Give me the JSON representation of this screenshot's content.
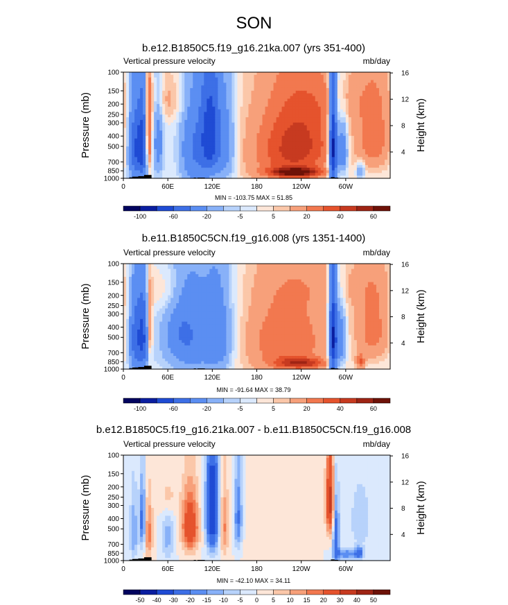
{
  "figure": {
    "title": "SON"
  },
  "chart_data": [
    {
      "type": "contour",
      "title": "b.e12.B1850C5.f19_g16.21ka.007 (yrs 351-400)",
      "left_label": "Vertical pressure velocity",
      "units": "mb/day",
      "xlabel": "",
      "ylabel": "Pressure (mb)",
      "ylabel_right": "Height (km)",
      "x_ticks": [
        "0",
        "60E",
        "120E",
        "180",
        "120W",
        "60W"
      ],
      "x_tick_values": [
        0,
        60,
        120,
        180,
        240,
        300
      ],
      "xlim": [
        0,
        360
      ],
      "y_ticks": [
        "100",
        "150",
        "200",
        "250",
        "300",
        "400",
        "500",
        "700",
        "850",
        "1000"
      ],
      "y_tick_values": [
        100,
        150,
        200,
        250,
        300,
        400,
        500,
        700,
        850,
        1000
      ],
      "ylim": [
        1000,
        100
      ],
      "y_right_ticks": [
        "4",
        "8",
        "12",
        "16"
      ],
      "y_right_tick_values": [
        4,
        8,
        12,
        16
      ],
      "stats": "MIN = -103.75  MAX =  51.85",
      "min": -103.75,
      "max": 51.85,
      "colorbar_labels": [
        "-100",
        "-60",
        "-20",
        "-5",
        "5",
        "20",
        "40",
        "60"
      ],
      "levels": [
        -120,
        -100,
        -80,
        -60,
        -40,
        -20,
        -10,
        -5,
        0,
        5,
        10,
        20,
        30,
        40,
        50,
        60
      ],
      "features": [
        {
          "lon": 15,
          "p": 520,
          "wlon": 6,
          "wp": 330,
          "value": -55
        },
        {
          "lon": 26,
          "p": 500,
          "wlon": 5,
          "wp": 330,
          "value": -65
        },
        {
          "lon": 34,
          "p": 400,
          "wlon": 3,
          "wp": 260,
          "value": 48
        },
        {
          "lon": 47,
          "p": 470,
          "wlon": 5,
          "wp": 300,
          "value": -28
        },
        {
          "lon": 60,
          "p": 180,
          "wlon": 18,
          "wp": 70,
          "value": 12
        },
        {
          "lon": 95,
          "p": 550,
          "wlon": 13,
          "wp": 380,
          "value": -38
        },
        {
          "lon": 118,
          "p": 400,
          "wlon": 10,
          "wp": 330,
          "value": -70
        },
        {
          "lon": 140,
          "p": 500,
          "wlon": 9,
          "wp": 350,
          "value": -25
        },
        {
          "lon": 225,
          "p": 550,
          "wlon": 40,
          "wp": 380,
          "value": 38
        },
        {
          "lon": 250,
          "p": 400,
          "wlon": 28,
          "wp": 250,
          "value": 12
        },
        {
          "lon": 232,
          "p": 880,
          "wlon": 24,
          "wp": 60,
          "value": 52
        },
        {
          "lon": 283,
          "p": 520,
          "wlon": 4,
          "wp": 400,
          "value": -100
        },
        {
          "lon": 296,
          "p": 550,
          "wlon": 5,
          "wp": 250,
          "value": -40
        },
        {
          "lon": 320,
          "p": 850,
          "wlon": 4,
          "wp": 100,
          "value": -25
        },
        {
          "lon": 338,
          "p": 420,
          "wlon": 16,
          "wp": 260,
          "value": 28
        },
        {
          "lon": 300,
          "p": 180,
          "wlon": 40,
          "wp": 80,
          "value": 10
        }
      ]
    },
    {
      "type": "contour",
      "title": "b.e11.B1850C5CN.f19_g16.008 (yrs 1351-1400)",
      "left_label": "Vertical pressure velocity",
      "units": "mb/day",
      "xlabel": "",
      "ylabel": "Pressure (mb)",
      "ylabel_right": "Height (km)",
      "x_ticks": [
        "0",
        "60E",
        "120E",
        "180",
        "120W",
        "60W"
      ],
      "x_tick_values": [
        0,
        60,
        120,
        180,
        240,
        300
      ],
      "xlim": [
        0,
        360
      ],
      "y_ticks": [
        "100",
        "150",
        "200",
        "250",
        "300",
        "400",
        "500",
        "700",
        "850",
        "1000"
      ],
      "y_tick_values": [
        100,
        150,
        200,
        250,
        300,
        400,
        500,
        700,
        850,
        1000
      ],
      "ylim": [
        1000,
        100
      ],
      "y_right_ticks": [
        "4",
        "8",
        "12",
        "16"
      ],
      "y_right_tick_values": [
        4,
        8,
        12,
        16
      ],
      "stats": "MIN = -91.64  MAX =  38.79",
      "min": -91.64,
      "max": 38.79,
      "colorbar_labels": [
        "-100",
        "-60",
        "-20",
        "-5",
        "5",
        "20",
        "40",
        "60"
      ],
      "levels": [
        -120,
        -100,
        -80,
        -60,
        -40,
        -20,
        -10,
        -5,
        0,
        5,
        10,
        20,
        30,
        40,
        50,
        60
      ],
      "features": [
        {
          "lon": 16,
          "p": 520,
          "wlon": 6,
          "wp": 330,
          "value": -50
        },
        {
          "lon": 27,
          "p": 500,
          "wlon": 5,
          "wp": 330,
          "value": -55
        },
        {
          "lon": 35,
          "p": 420,
          "wlon": 3,
          "wp": 250,
          "value": 30
        },
        {
          "lon": 95,
          "p": 500,
          "wlon": 30,
          "wp": 380,
          "value": -32
        },
        {
          "lon": 80,
          "p": 450,
          "wlon": 12,
          "wp": 200,
          "value": -15
        },
        {
          "lon": 130,
          "p": 500,
          "wlon": 12,
          "wp": 350,
          "value": -20
        },
        {
          "lon": 60,
          "p": 180,
          "wlon": 18,
          "wp": 70,
          "value": 10
        },
        {
          "lon": 220,
          "p": 550,
          "wlon": 42,
          "wp": 380,
          "value": 30
        },
        {
          "lon": 240,
          "p": 880,
          "wlon": 24,
          "wp": 70,
          "value": 36
        },
        {
          "lon": 283,
          "p": 520,
          "wlon": 4,
          "wp": 400,
          "value": -90
        },
        {
          "lon": 294,
          "p": 550,
          "wlon": 5,
          "wp": 250,
          "value": -35
        },
        {
          "lon": 320,
          "p": 850,
          "wlon": 4,
          "wp": 100,
          "value": 28
        },
        {
          "lon": 337,
          "p": 420,
          "wlon": 16,
          "wp": 260,
          "value": 25
        },
        {
          "lon": 290,
          "p": 160,
          "wlon": 50,
          "wp": 70,
          "value": 8
        }
      ]
    },
    {
      "type": "contour",
      "title": "b.e12.B1850C5.f19_g16.21ka.007 - b.e11.B1850C5CN.f19_g16.008",
      "left_label": "Vertical pressure velocity",
      "units": "mb/day",
      "xlabel": "",
      "ylabel": "Pressure (mb)",
      "ylabel_right": "Height (km)",
      "x_ticks": [
        "0",
        "60E",
        "120E",
        "180",
        "120W",
        "60W"
      ],
      "x_tick_values": [
        0,
        60,
        120,
        180,
        240,
        300
      ],
      "xlim": [
        0,
        360
      ],
      "y_ticks": [
        "100",
        "150",
        "200",
        "250",
        "300",
        "400",
        "500",
        "700",
        "850",
        "1000"
      ],
      "y_tick_values": [
        100,
        150,
        200,
        250,
        300,
        400,
        500,
        700,
        850,
        1000
      ],
      "ylim": [
        1000,
        100
      ],
      "y_right_ticks": [
        "4",
        "8",
        "12",
        "16"
      ],
      "y_right_tick_values": [
        4,
        8,
        12,
        16
      ],
      "stats": "MIN = -42.10  MAX =  34.11",
      "min": -42.1,
      "max": 34.11,
      "colorbar_labels": [
        "-50",
        "-40",
        "-30",
        "-20",
        "-15",
        "-10",
        "-5",
        "0",
        "5",
        "10",
        "15",
        "20",
        "30",
        "40",
        "50"
      ],
      "levels": [
        -60,
        -50,
        -40,
        -30,
        -20,
        -15,
        -10,
        -5,
        0,
        5,
        10,
        15,
        20,
        30,
        40,
        50,
        60
      ],
      "features": [
        {
          "lon": 14,
          "p": 550,
          "wlon": 4,
          "wp": 280,
          "value": -15
        },
        {
          "lon": 26,
          "p": 420,
          "wlon": 3,
          "wp": 220,
          "value": -25
        },
        {
          "lon": 34,
          "p": 550,
          "wlon": 4,
          "wp": 250,
          "value": 18
        },
        {
          "lon": 60,
          "p": 600,
          "wlon": 6,
          "wp": 250,
          "value": -12
        },
        {
          "lon": 60,
          "p": 250,
          "wlon": 8,
          "wp": 80,
          "value": 10
        },
        {
          "lon": 90,
          "p": 480,
          "wlon": 8,
          "wp": 220,
          "value": 30
        },
        {
          "lon": 120,
          "p": 350,
          "wlon": 6,
          "wp": 300,
          "value": -42
        },
        {
          "lon": 136,
          "p": 480,
          "wlon": 4,
          "wp": 260,
          "value": 16
        },
        {
          "lon": 155,
          "p": 400,
          "wlon": 4,
          "wp": 250,
          "value": -22
        },
        {
          "lon": 200,
          "p": 600,
          "wlon": 30,
          "wp": 350,
          "value": 4
        },
        {
          "lon": 279,
          "p": 280,
          "wlon": 4,
          "wp": 180,
          "value": 34
        },
        {
          "lon": 287,
          "p": 600,
          "wlon": 3,
          "wp": 300,
          "value": -30
        },
        {
          "lon": 300,
          "p": 870,
          "wlon": 10,
          "wp": 70,
          "value": -20
        },
        {
          "lon": 318,
          "p": 850,
          "wlon": 4,
          "wp": 80,
          "value": -25
        },
        {
          "lon": 320,
          "p": 420,
          "wlon": 10,
          "wp": 200,
          "value": -10
        }
      ]
    }
  ],
  "colors": {
    "palette": [
      "#02045f",
      "#0a1ea0",
      "#1f4bd4",
      "#3d6fe6",
      "#5b8ef2",
      "#88b1f8",
      "#b7d2fb",
      "#dbe9fd",
      "#fde6d8",
      "#fbc7a9",
      "#f7a07a",
      "#f2784f",
      "#e5532d",
      "#c73a20",
      "#9e2414",
      "#6e1208"
    ],
    "palette_diff": [
      "#02045f",
      "#0a1ea0",
      "#1f4bd4",
      "#3d6fe6",
      "#5b8ef2",
      "#88b1f8",
      "#b7d2fb",
      "#dbe9fd",
      "#fde6d8",
      "#fbc7a9",
      "#f7a07a",
      "#f2784f",
      "#e5532d",
      "#c73a20",
      "#9e2414",
      "#6e1208"
    ],
    "zero": "#ffffff",
    "terrain": "#000000"
  }
}
